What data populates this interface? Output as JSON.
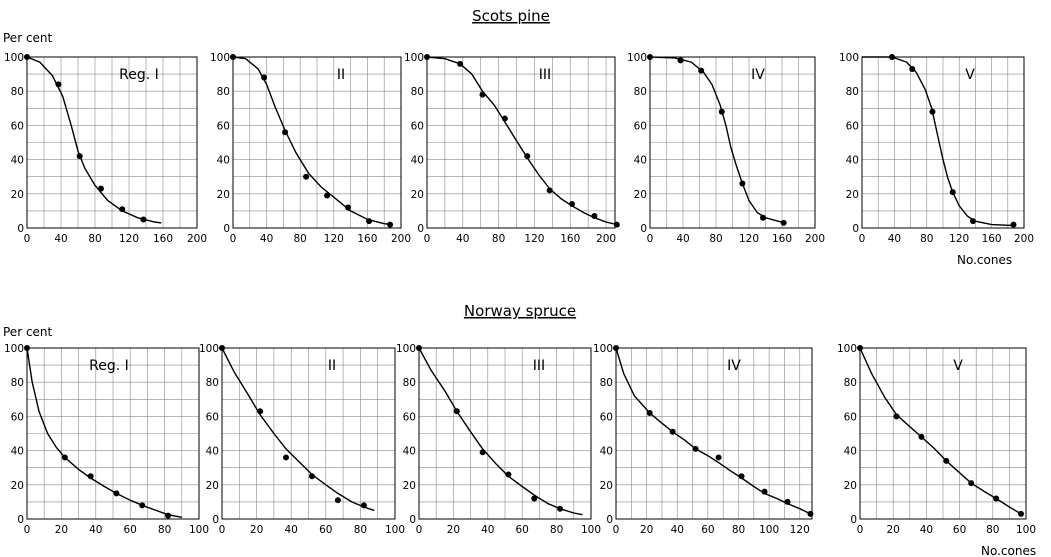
{
  "ylabel": "Per cent",
  "xlabel": "No.cones",
  "chart_data": [
    {
      "type": "line",
      "group": "Scots pine",
      "panel_label": "Reg. I",
      "xticks": [
        "0",
        "40",
        "80",
        "120",
        "160",
        "200"
      ],
      "yticks": [
        "0",
        "20",
        "40",
        "60",
        "80",
        "100"
      ],
      "xlim": [
        0,
        200
      ],
      "ylim": [
        0,
        100
      ],
      "points": [
        [
          0,
          100
        ],
        [
          37,
          84
        ],
        [
          62,
          42
        ],
        [
          87,
          23
        ],
        [
          112,
          11
        ],
        [
          137,
          5
        ]
      ],
      "curve": [
        [
          0,
          100
        ],
        [
          15,
          97
        ],
        [
          30,
          89
        ],
        [
          42,
          77
        ],
        [
          52,
          60
        ],
        [
          60,
          45
        ],
        [
          68,
          35
        ],
        [
          80,
          25
        ],
        [
          95,
          16
        ],
        [
          112,
          10
        ],
        [
          130,
          6
        ],
        [
          150,
          3.5
        ],
        [
          158,
          3
        ]
      ]
    },
    {
      "type": "line",
      "group": "Scots pine",
      "panel_label": "II",
      "xticks": [
        "0",
        "40",
        "80",
        "120",
        "160",
        "200"
      ],
      "yticks": [
        "0",
        "20",
        "40",
        "60",
        "80",
        "100"
      ],
      "xlim": [
        0,
        200
      ],
      "ylim": [
        0,
        100
      ],
      "points": [
        [
          0,
          100
        ],
        [
          37,
          88
        ],
        [
          62,
          56
        ],
        [
          87,
          30
        ],
        [
          112,
          19
        ],
        [
          137,
          12
        ],
        [
          162,
          4
        ],
        [
          187,
          2
        ]
      ],
      "curve": [
        [
          0,
          100
        ],
        [
          15,
          99
        ],
        [
          30,
          93
        ],
        [
          40,
          84
        ],
        [
          50,
          71
        ],
        [
          62,
          57
        ],
        [
          75,
          44
        ],
        [
          90,
          32
        ],
        [
          105,
          24
        ],
        [
          120,
          18
        ],
        [
          140,
          10
        ],
        [
          160,
          5
        ],
        [
          180,
          2.5
        ],
        [
          190,
          2
        ]
      ]
    },
    {
      "type": "line",
      "group": "Scots pine",
      "panel_label": "III",
      "xticks": [
        "0",
        "40",
        "80",
        "120",
        "160",
        "200"
      ],
      "yticks": [
        "0",
        "20",
        "40",
        "60",
        "80",
        "100"
      ],
      "xlim": [
        0,
        210
      ],
      "ylim": [
        0,
        100
      ],
      "points": [
        [
          0,
          100
        ],
        [
          37,
          96
        ],
        [
          62,
          78
        ],
        [
          87,
          64
        ],
        [
          112,
          42
        ],
        [
          137,
          22
        ],
        [
          162,
          14
        ],
        [
          187,
          7
        ],
        [
          212,
          2
        ]
      ],
      "curve": [
        [
          0,
          100
        ],
        [
          20,
          99
        ],
        [
          37,
          96
        ],
        [
          50,
          90
        ],
        [
          62,
          80
        ],
        [
          75,
          72
        ],
        [
          87,
          62
        ],
        [
          100,
          51
        ],
        [
          112,
          41
        ],
        [
          125,
          31
        ],
        [
          137,
          23
        ],
        [
          150,
          17
        ],
        [
          162,
          13
        ],
        [
          175,
          9
        ],
        [
          187,
          6
        ],
        [
          200,
          3.5
        ],
        [
          212,
          2
        ]
      ]
    },
    {
      "type": "line",
      "group": "Scots pine",
      "panel_label": "IV",
      "xticks": [
        "0",
        "40",
        "80",
        "120",
        "160",
        "200"
      ],
      "yticks": [
        "0",
        "20",
        "40",
        "60",
        "80",
        "100"
      ],
      "xlim": [
        0,
        200
      ],
      "ylim": [
        0,
        100
      ],
      "points": [
        [
          0,
          100
        ],
        [
          37,
          98
        ],
        [
          62,
          92
        ],
        [
          87,
          68
        ],
        [
          112,
          26
        ],
        [
          137,
          6
        ],
        [
          162,
          3
        ]
      ],
      "curve": [
        [
          0,
          100
        ],
        [
          30,
          99.5
        ],
        [
          50,
          97
        ],
        [
          65,
          91
        ],
        [
          75,
          84
        ],
        [
          85,
          72
        ],
        [
          92,
          60
        ],
        [
          98,
          47
        ],
        [
          105,
          36
        ],
        [
          112,
          26
        ],
        [
          120,
          16
        ],
        [
          130,
          9
        ],
        [
          140,
          6
        ],
        [
          155,
          4
        ],
        [
          165,
          3
        ]
      ]
    },
    {
      "type": "line",
      "group": "Scots pine",
      "panel_label": "V",
      "xticks": [
        "0",
        "40",
        "80",
        "120",
        "160",
        "200"
      ],
      "yticks": [
        "0",
        "20",
        "40",
        "60",
        "80",
        "100"
      ],
      "xlim": [
        0,
        200
      ],
      "ylim": [
        0,
        100
      ],
      "points": [
        [
          37,
          100
        ],
        [
          62,
          93
        ],
        [
          87,
          68
        ],
        [
          112,
          21
        ],
        [
          137,
          4
        ],
        [
          187,
          2
        ]
      ],
      "curve": [
        [
          0,
          100
        ],
        [
          37,
          100
        ],
        [
          55,
          97
        ],
        [
          67,
          91
        ],
        [
          78,
          81
        ],
        [
          86,
          70
        ],
        [
          93,
          55
        ],
        [
          100,
          40
        ],
        [
          106,
          29
        ],
        [
          112,
          21
        ],
        [
          120,
          13
        ],
        [
          130,
          7
        ],
        [
          140,
          4
        ],
        [
          160,
          2
        ],
        [
          185,
          1.5
        ]
      ]
    },
    {
      "type": "line",
      "group": "Norway spruce",
      "panel_label": "Reg. I",
      "xticks": [
        "0",
        "20",
        "40",
        "60",
        "80",
        "100"
      ],
      "yticks": [
        "0",
        "20",
        "40",
        "60",
        "80",
        "100"
      ],
      "xlim": [
        0,
        100
      ],
      "ylim": [
        0,
        100
      ],
      "points": [
        [
          0,
          100
        ],
        [
          22,
          36
        ],
        [
          37,
          25
        ],
        [
          52,
          15
        ],
        [
          67,
          8
        ],
        [
          82,
          2
        ]
      ],
      "curve": [
        [
          0,
          100
        ],
        [
          3,
          80
        ],
        [
          7,
          63
        ],
        [
          12,
          50
        ],
        [
          17,
          42
        ],
        [
          22,
          36
        ],
        [
          30,
          29
        ],
        [
          37,
          24
        ],
        [
          45,
          19
        ],
        [
          52,
          15
        ],
        [
          60,
          11
        ],
        [
          67,
          8
        ],
        [
          75,
          5
        ],
        [
          82,
          2.5
        ],
        [
          90,
          1
        ]
      ]
    },
    {
      "type": "line",
      "group": "Norway spruce",
      "panel_label": "II",
      "xticks": [
        "0",
        "20",
        "40",
        "60",
        "80",
        "100"
      ],
      "yticks": [
        "0",
        "20",
        "40",
        "60",
        "80",
        "100"
      ],
      "xlim": [
        0,
        100
      ],
      "ylim": [
        0,
        100
      ],
      "points": [
        [
          0,
          100
        ],
        [
          22,
          63
        ],
        [
          37,
          36
        ],
        [
          52,
          25
        ],
        [
          67,
          11
        ],
        [
          82,
          8
        ]
      ],
      "curve": [
        [
          0,
          100
        ],
        [
          7,
          86
        ],
        [
          15,
          73
        ],
        [
          22,
          61
        ],
        [
          30,
          50
        ],
        [
          37,
          41
        ],
        [
          45,
          33
        ],
        [
          52,
          26
        ],
        [
          60,
          20
        ],
        [
          67,
          15
        ],
        [
          75,
          10
        ],
        [
          82,
          7
        ],
        [
          88,
          5
        ]
      ]
    },
    {
      "type": "line",
      "group": "Norway spruce",
      "panel_label": "III",
      "xticks": [
        "0",
        "20",
        "40",
        "60",
        "80",
        "100"
      ],
      "yticks": [
        "0",
        "20",
        "40",
        "60",
        "80",
        "100"
      ],
      "xlim": [
        0,
        100
      ],
      "ylim": [
        0,
        100
      ],
      "points": [
        [
          0,
          100
        ],
        [
          22,
          63
        ],
        [
          37,
          39
        ],
        [
          52,
          26
        ],
        [
          67,
          12
        ],
        [
          82,
          6
        ]
      ],
      "curve": [
        [
          0,
          100
        ],
        [
          7,
          87
        ],
        [
          15,
          75
        ],
        [
          22,
          63
        ],
        [
          30,
          51
        ],
        [
          37,
          41
        ],
        [
          45,
          32
        ],
        [
          52,
          25
        ],
        [
          60,
          19
        ],
        [
          67,
          14
        ],
        [
          75,
          9
        ],
        [
          82,
          6
        ],
        [
          90,
          3.5
        ],
        [
          95,
          2.5
        ]
      ]
    },
    {
      "type": "line",
      "group": "Norway spruce",
      "panel_label": "IV",
      "xticks": [
        "0",
        "20",
        "40",
        "60",
        "80",
        "100",
        "120"
      ],
      "yticks": [
        "0",
        "20",
        "40",
        "60",
        "80",
        "100"
      ],
      "xlim": [
        0,
        128
      ],
      "ylim": [
        0,
        100
      ],
      "points": [
        [
          0,
          100
        ],
        [
          22,
          62
        ],
        [
          37,
          51
        ],
        [
          52,
          41
        ],
        [
          67,
          36
        ],
        [
          82,
          25
        ],
        [
          97,
          16
        ],
        [
          112,
          10
        ],
        [
          127,
          3
        ]
      ],
      "curve": [
        [
          0,
          100
        ],
        [
          5,
          85
        ],
        [
          12,
          72
        ],
        [
          22,
          62
        ],
        [
          30,
          56
        ],
        [
          37,
          51
        ],
        [
          45,
          46
        ],
        [
          52,
          41
        ],
        [
          60,
          37
        ],
        [
          67,
          33
        ],
        [
          75,
          28
        ],
        [
          82,
          24
        ],
        [
          90,
          19
        ],
        [
          97,
          15
        ],
        [
          105,
          12
        ],
        [
          112,
          9
        ],
        [
          120,
          6
        ],
        [
          127,
          3
        ]
      ]
    },
    {
      "type": "line",
      "group": "Norway spruce",
      "panel_label": "V",
      "xticks": [
        "0",
        "20",
        "40",
        "60",
        "80",
        "100"
      ],
      "yticks": [
        "0",
        "20",
        "40",
        "60",
        "80",
        "100"
      ],
      "xlim": [
        0,
        100
      ],
      "ylim": [
        0,
        100
      ],
      "points": [
        [
          0,
          100
        ],
        [
          22,
          60
        ],
        [
          37,
          48
        ],
        [
          52,
          34
        ],
        [
          67,
          21
        ],
        [
          82,
          12
        ],
        [
          97,
          3
        ]
      ],
      "curve": [
        [
          0,
          100
        ],
        [
          7,
          85
        ],
        [
          15,
          71
        ],
        [
          22,
          61
        ],
        [
          30,
          54
        ],
        [
          37,
          48
        ],
        [
          45,
          41
        ],
        [
          52,
          34
        ],
        [
          60,
          27
        ],
        [
          67,
          21
        ],
        [
          75,
          16
        ],
        [
          82,
          12
        ],
        [
          90,
          7
        ],
        [
          97,
          3
        ]
      ]
    }
  ],
  "groups": {
    "top_title": "Scots pine",
    "bottom_title": "Norway spruce"
  }
}
